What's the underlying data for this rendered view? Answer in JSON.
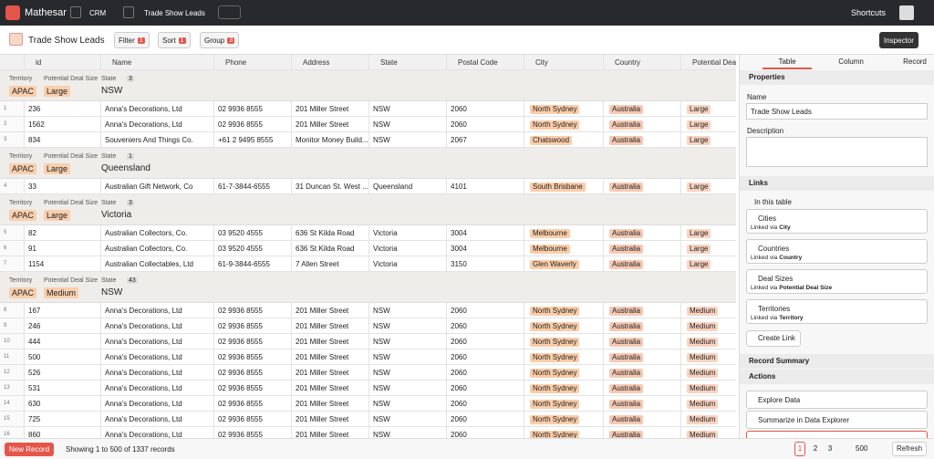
{
  "topbar": {
    "brand": "Mathesar",
    "breadcrumbs": [
      "CRM",
      "Trade Show Leads"
    ],
    "shortcuts": "Shortcuts"
  },
  "toolbar": {
    "title": "Trade Show Leads",
    "filter": {
      "label": "Filter",
      "count": 1
    },
    "sort": {
      "label": "Sort",
      "count": 1
    },
    "group": {
      "label": "Group",
      "count": 3
    },
    "inspector": "Inspector"
  },
  "table": {
    "columns": [
      "id",
      "Name",
      "Phone",
      "Address",
      "State",
      "Postal Code",
      "City",
      "Country",
      "Potential Deal Si"
    ],
    "group_labels": [
      "Territory",
      "Potential Deal Size",
      "State"
    ],
    "groups": [
      {
        "values": [
          "APAC",
          "Large",
          "NSW"
        ],
        "count": 3,
        "rows": [
          [
            "1",
            "236",
            "Anna's Decorations, Ltd",
            "02 9936 8555",
            "201 Miller Street",
            "NSW",
            "2060",
            "North Sydney",
            "Australia",
            "Large"
          ],
          [
            "2",
            "1562",
            "Anna's Decorations, Ltd",
            "02 9936 8555",
            "201 Miller Street",
            "NSW",
            "2060",
            "North Sydney",
            "Australia",
            "Large"
          ],
          [
            "3",
            "834",
            "Souveniers And Things Co.",
            "+61 2 9495 8555",
            "Monitor Money Build...",
            "NSW",
            "2067",
            "Chatswood",
            "Australia",
            "Large"
          ]
        ]
      },
      {
        "values": [
          "APAC",
          "Large",
          "Queensland"
        ],
        "count": 1,
        "rows": [
          [
            "4",
            "33",
            "Australian Gift Network, Co",
            "61-7-3844-6555",
            "31 Duncan St. West ...",
            "Queensland",
            "4101",
            "South Brisbane",
            "Australia",
            "Large"
          ]
        ]
      },
      {
        "values": [
          "APAC",
          "Large",
          "Victoria"
        ],
        "count": 3,
        "rows": [
          [
            "5",
            "82",
            "Australian Collectors, Co.",
            "03 9520 4555",
            "636 St Kilda Road",
            "Victoria",
            "3004",
            "Melbourne",
            "Australia",
            "Large"
          ],
          [
            "6",
            "91",
            "Australian Collectors, Co.",
            "03 9520 4555",
            "636 St Kilda Road",
            "Victoria",
            "3004",
            "Melbourne",
            "Australia",
            "Large"
          ],
          [
            "7",
            "1154",
            "Australian Collectables, Ltd",
            "61-9-3844-6555",
            "7 Allen Street",
            "Victoria",
            "3150",
            "Glen Waverly",
            "Australia",
            "Large"
          ]
        ]
      },
      {
        "values": [
          "APAC",
          "Medium",
          "NSW"
        ],
        "count": 43,
        "rows": [
          [
            "8",
            "167",
            "Anna's Decorations, Ltd",
            "02 9936 8555",
            "201 Miller Street",
            "NSW",
            "2060",
            "North Sydney",
            "Australia",
            "Medium"
          ],
          [
            "9",
            "246",
            "Anna's Decorations, Ltd",
            "02 9936 8555",
            "201 Miller Street",
            "NSW",
            "2060",
            "North Sydney",
            "Australia",
            "Medium"
          ],
          [
            "10",
            "444",
            "Anna's Decorations, Ltd",
            "02 9936 8555",
            "201 Miller Street",
            "NSW",
            "2060",
            "North Sydney",
            "Australia",
            "Medium"
          ],
          [
            "11",
            "500",
            "Anna's Decorations, Ltd",
            "02 9936 8555",
            "201 Miller Street",
            "NSW",
            "2060",
            "North Sydney",
            "Australia",
            "Medium"
          ],
          [
            "12",
            "526",
            "Anna's Decorations, Ltd",
            "02 9936 8555",
            "201 Miller Street",
            "NSW",
            "2060",
            "North Sydney",
            "Australia",
            "Medium"
          ],
          [
            "13",
            "531",
            "Anna's Decorations, Ltd",
            "02 9936 8555",
            "201 Miller Street",
            "NSW",
            "2060",
            "North Sydney",
            "Australia",
            "Medium"
          ],
          [
            "14",
            "630",
            "Anna's Decorations, Ltd",
            "02 9936 8555",
            "201 Miller Street",
            "NSW",
            "2060",
            "North Sydney",
            "Australia",
            "Medium"
          ],
          [
            "15",
            "725",
            "Anna's Decorations, Ltd",
            "02 9936 8555",
            "201 Miller Street",
            "NSW",
            "2060",
            "North Sydney",
            "Australia",
            "Medium"
          ],
          [
            "16",
            "860",
            "Anna's Decorations, Ltd",
            "02 9936 8555",
            "201 Miller Street",
            "NSW",
            "2060",
            "North Sydney",
            "Australia",
            "Medium"
          ]
        ]
      }
    ]
  },
  "inspector": {
    "tabs": [
      "Table",
      "Column",
      "Record"
    ],
    "properties": "Properties",
    "name_label": "Name",
    "name_value": "Trade Show Leads",
    "description_label": "Description",
    "links": "Links",
    "in_this_table": "In this table",
    "link_items": [
      {
        "title": "Cities",
        "via": "Linked via",
        "column": "City"
      },
      {
        "title": "Countries",
        "via": "Linked via",
        "column": "Country"
      },
      {
        "title": "Deal Sizes",
        "via": "Linked via",
        "column": "Potential Deal Size"
      },
      {
        "title": "Territories",
        "via": "Linked via",
        "column": "Territory"
      }
    ],
    "create_link": "Create Link",
    "record_summary": "Record Summary",
    "actions": "Actions",
    "action_items": [
      "Explore Data",
      "Summarize in Data Explorer"
    ]
  },
  "footer": {
    "new_record": "New Record",
    "status": "Showing 1 to 500 of 1337 records",
    "pages": [
      "1",
      "2",
      "3"
    ],
    "page_size": "500",
    "refresh": "Refresh"
  }
}
